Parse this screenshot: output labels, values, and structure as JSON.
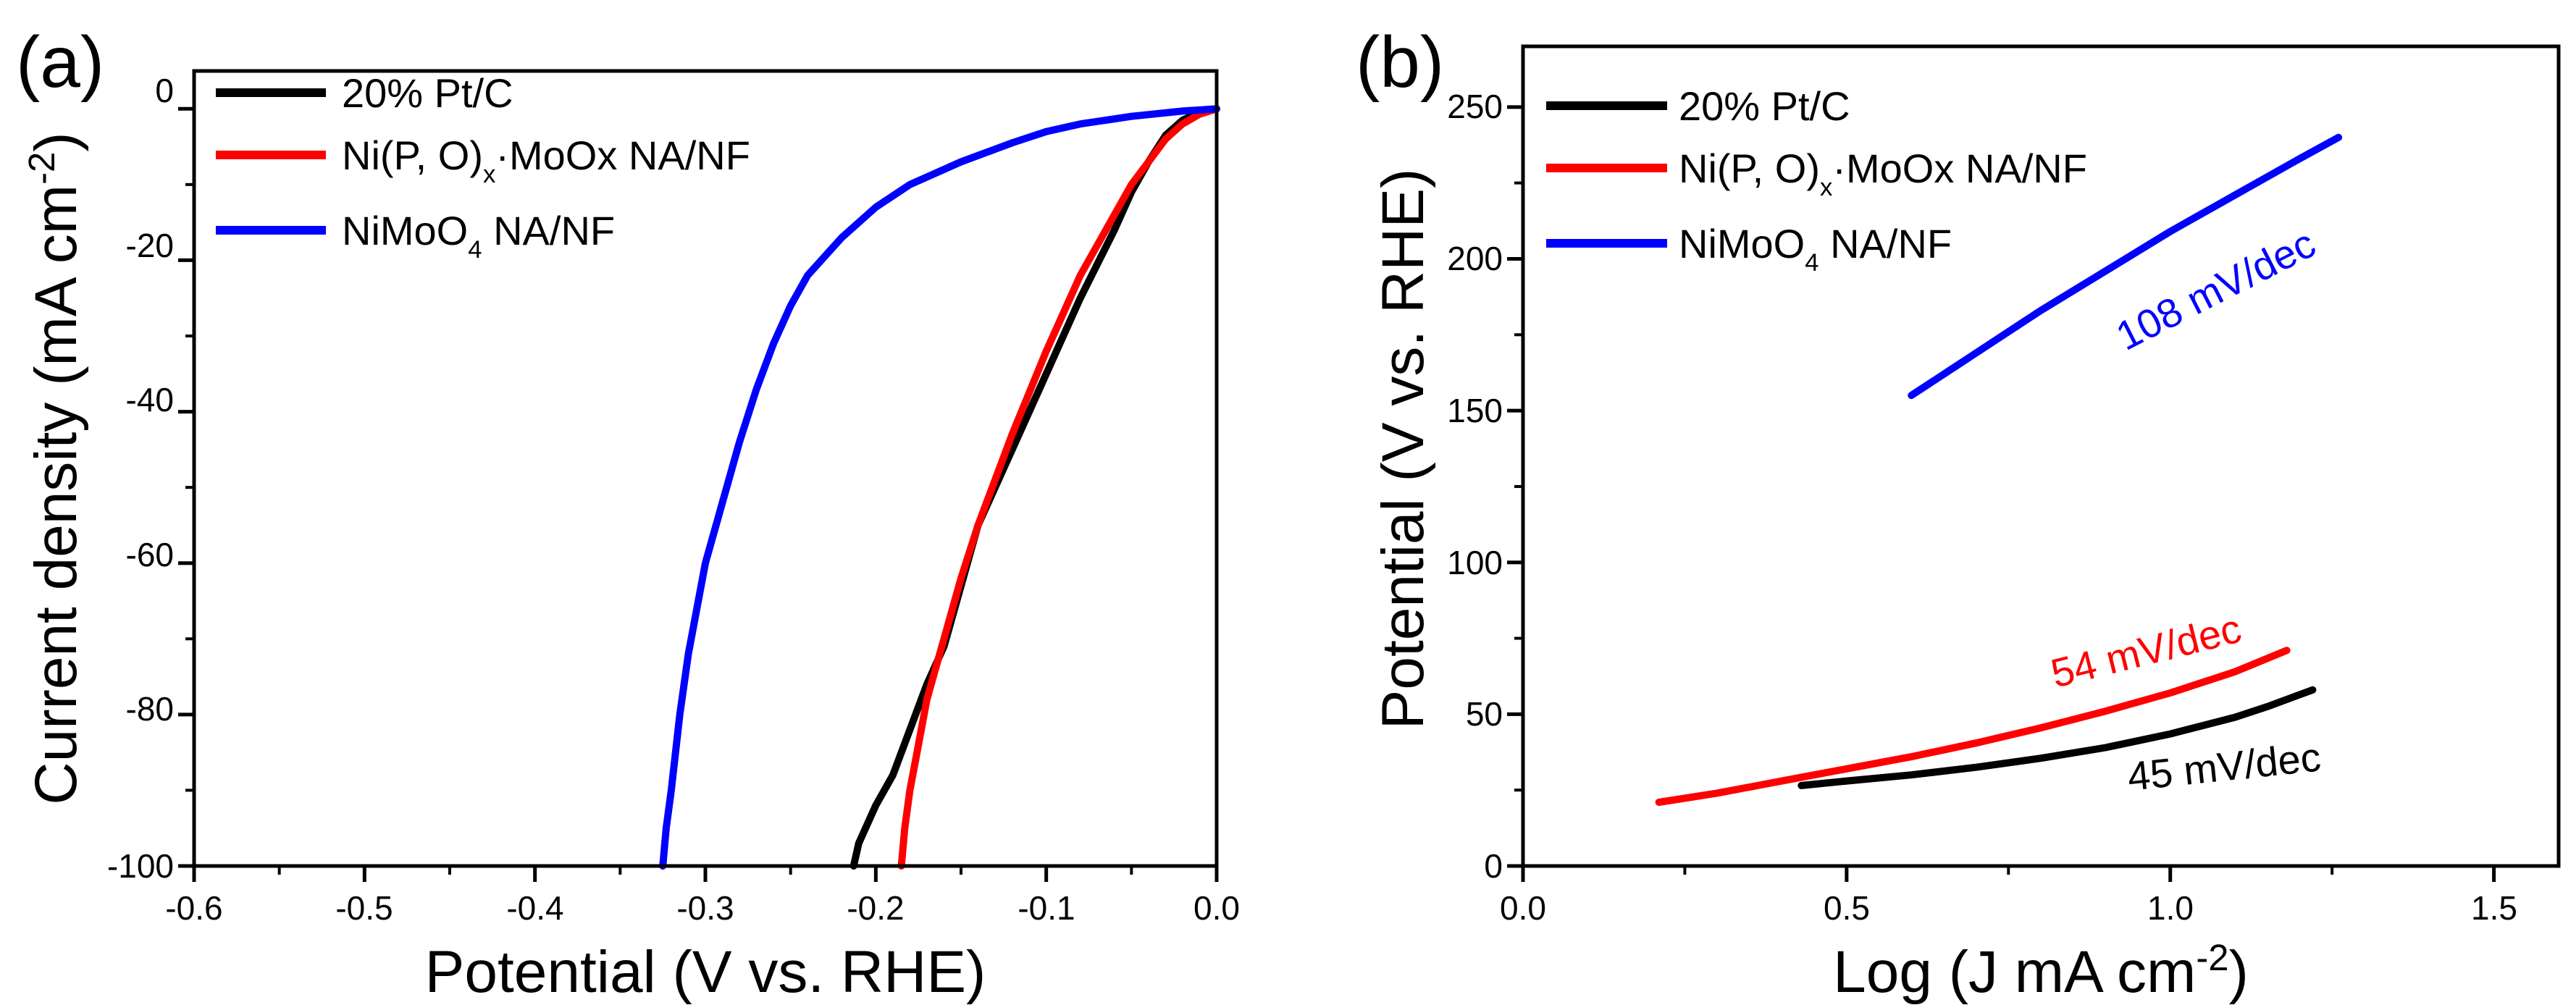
{
  "chart_data": [
    {
      "panel": "(a)",
      "type": "line",
      "title": "",
      "xlabel": "Potential (V vs. RHE)",
      "ylabel": "Current density (mA cm-2)",
      "ylabel_parts": {
        "main": "Current density (mA cm",
        "sup": "-2",
        "end": ")"
      },
      "xlim": [
        -0.6,
        0.0
      ],
      "ylim": [
        -100,
        5
      ],
      "xticks": [
        -0.6,
        -0.5,
        -0.4,
        -0.3,
        -0.2,
        -0.1,
        0.0
      ],
      "xtick_labels": [
        "-0.6",
        "-0.5",
        "-0.4",
        "-0.3",
        "-0.2",
        "-0.1",
        "0.0"
      ],
      "yticks": [
        0,
        -20,
        -40,
        -60,
        -80,
        -100
      ],
      "ytick_labels": [
        "0",
        "-20",
        "-40",
        "-60",
        "-80",
        "-100"
      ],
      "legend_position": "top-left",
      "series": [
        {
          "name": "20% Pt/C",
          "legend_parts": {
            "main": "20% Pt/C"
          },
          "color": "#000000",
          "x": [
            0.0,
            -0.01,
            -0.02,
            -0.03,
            -0.04,
            -0.05,
            -0.06,
            -0.08,
            -0.1,
            -0.12,
            -0.14,
            -0.15,
            -0.16,
            -0.17,
            -0.18,
            -0.19,
            -0.2,
            -0.21,
            -0.213
          ],
          "y": [
            0,
            -0.5,
            -1.5,
            -3.5,
            -7,
            -11,
            -16,
            -25,
            -35,
            -45,
            -55,
            -63,
            -71,
            -76,
            -82,
            -88,
            -92,
            -97,
            -100
          ]
        },
        {
          "name": "Ni(P, O)x·MoOx NA/NF",
          "legend_parts": {
            "main": "Ni(P, O)",
            "sub": "x",
            "end": "·MoOx NA/NF"
          },
          "color": "#ff0000",
          "x": [
            0.0,
            -0.01,
            -0.02,
            -0.03,
            -0.04,
            -0.05,
            -0.06,
            -0.08,
            -0.1,
            -0.12,
            -0.14,
            -0.15,
            -0.16,
            -0.17,
            -0.175,
            -0.18,
            -0.183,
            -0.185
          ],
          "y": [
            0,
            -0.7,
            -2,
            -4,
            -7,
            -10,
            -14,
            -22,
            -32,
            -43,
            -55,
            -62,
            -70,
            -78,
            -84,
            -90,
            -95,
            -100
          ]
        },
        {
          "name": "NiMoO4 NA/NF",
          "legend_parts": {
            "main": "NiMoO",
            "sub": "4",
            "end": " NA/NF"
          },
          "color": "#0000ff",
          "x": [
            0.0,
            -0.02,
            -0.05,
            -0.08,
            -0.1,
            -0.12,
            -0.15,
            -0.18,
            -0.2,
            -0.22,
            -0.24,
            -0.25,
            -0.26,
            -0.27,
            -0.28,
            -0.29,
            -0.3,
            -0.31,
            -0.315,
            -0.32,
            -0.323,
            -0.325
          ],
          "y": [
            0,
            -0.3,
            -1,
            -2,
            -3,
            -4.5,
            -7,
            -10,
            -13,
            -17,
            -22,
            -26,
            -31,
            -37,
            -44,
            -52,
            -60,
            -72,
            -80,
            -90,
            -95,
            -100
          ]
        }
      ]
    },
    {
      "panel": "(b)",
      "type": "line",
      "title": "",
      "xlabel": "Log (J mA cm-2)",
      "xlabel_parts": {
        "main": "Log (J mA cm",
        "sup": "-2",
        "end": ")"
      },
      "ylabel": "Potential (V vs. RHE)",
      "ylabel_parts": {
        "main": "Potential (V",
        "sub": " ",
        "end": "vs. RHE)"
      },
      "xlim": [
        0.0,
        1.6
      ],
      "ylim": [
        0,
        270
      ],
      "xticks": [
        0.0,
        0.5,
        1.0,
        1.5
      ],
      "xtick_labels": [
        "0.0",
        "0.5",
        "1.0",
        "1.5"
      ],
      "yticks": [
        0,
        50,
        100,
        150,
        200,
        250
      ],
      "ytick_labels": [
        "0",
        "50",
        "100",
        "150",
        "200",
        "250"
      ],
      "legend_position": "top-left",
      "series": [
        {
          "name": "20% Pt/C",
          "legend_parts": {
            "main": "20% Pt/C"
          },
          "color": "#000000",
          "x": [
            0.43,
            0.5,
            0.6,
            0.7,
            0.8,
            0.9,
            1.0,
            1.1,
            1.15,
            1.22
          ],
          "y": [
            26.5,
            28,
            30,
            32.5,
            35.5,
            39,
            43.5,
            49,
            52.5,
            58
          ]
        },
        {
          "name": "Ni(P, O)x·MoOx NA/NF",
          "legend_parts": {
            "main": "Ni(P, O)",
            "sub": "x",
            "end": "·MoOx NA/NF"
          },
          "color": "#ff0000",
          "x": [
            0.21,
            0.3,
            0.4,
            0.5,
            0.6,
            0.7,
            0.8,
            0.9,
            1.0,
            1.1,
            1.18
          ],
          "y": [
            21,
            24,
            28,
            32,
            36,
            40.5,
            45.5,
            51,
            57,
            64,
            71
          ]
        },
        {
          "name": "NiMoO4 NA/NF",
          "legend_parts": {
            "main": "NiMoO",
            "sub": "4",
            "end": " NA/NF"
          },
          "color": "#0000ff",
          "x": [
            0.6,
            0.7,
            0.8,
            0.9,
            1.0,
            1.1,
            1.2,
            1.26
          ],
          "y": [
            155,
            169,
            183,
            196,
            209,
            221,
            233,
            240
          ]
        }
      ],
      "annotations": [
        {
          "text": "108 mV/dec",
          "color": "#0000ff"
        },
        {
          "text": "54 mV/dec",
          "color": "#ff0000"
        },
        {
          "text": "45 mV/dec",
          "color": "#000000"
        }
      ]
    }
  ]
}
